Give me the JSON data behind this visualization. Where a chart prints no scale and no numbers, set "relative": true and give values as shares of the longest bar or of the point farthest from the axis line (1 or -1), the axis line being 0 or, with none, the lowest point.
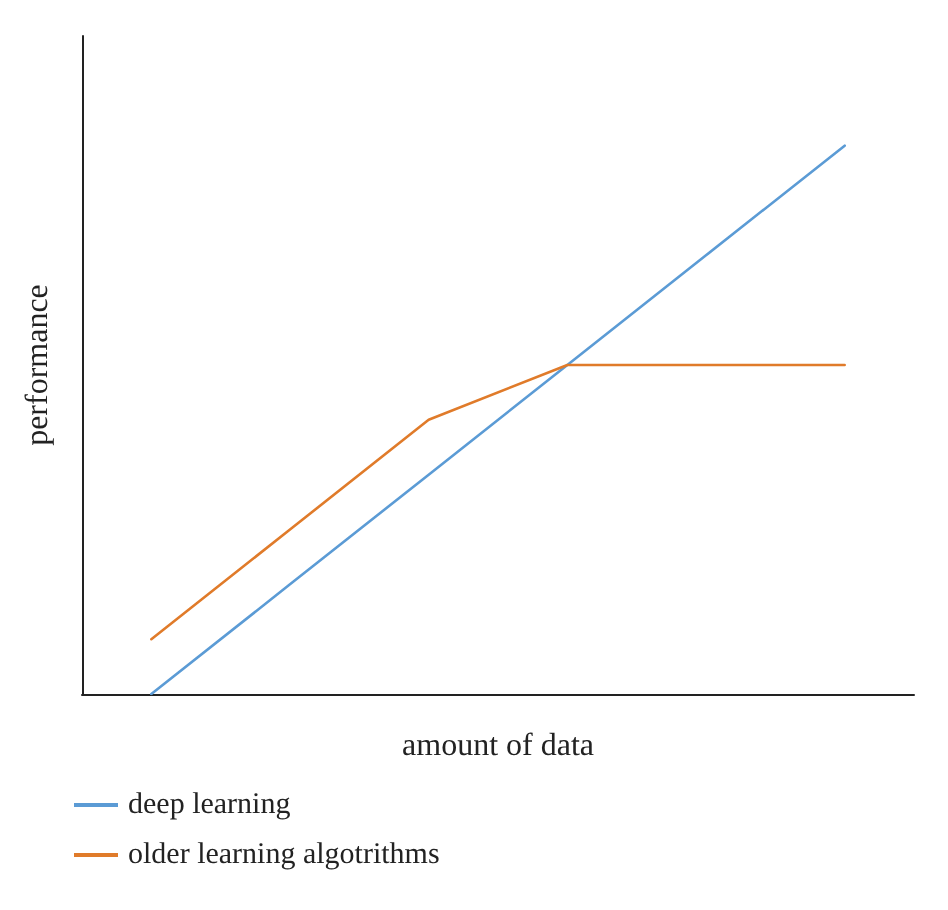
{
  "chart_data": {
    "type": "line",
    "relative": true,
    "xlabel": "amount of data",
    "ylabel": "performance",
    "categories": [
      null,
      null,
      null,
      null,
      null,
      null
    ],
    "series": [
      {
        "name": "deep learning",
        "color": "#5b9bd5",
        "values": [
          0,
          0.2,
          0.4,
          0.6,
          0.8,
          1.0
        ]
      },
      {
        "name": "older learning algotrithms",
        "color": "#e07b2a",
        "values": [
          0.1,
          0.3,
          0.5,
          0.6,
          0.6,
          0.6
        ]
      }
    ],
    "legend": "bottom",
    "grid": false,
    "marker": "none",
    "line_style": "solid"
  }
}
